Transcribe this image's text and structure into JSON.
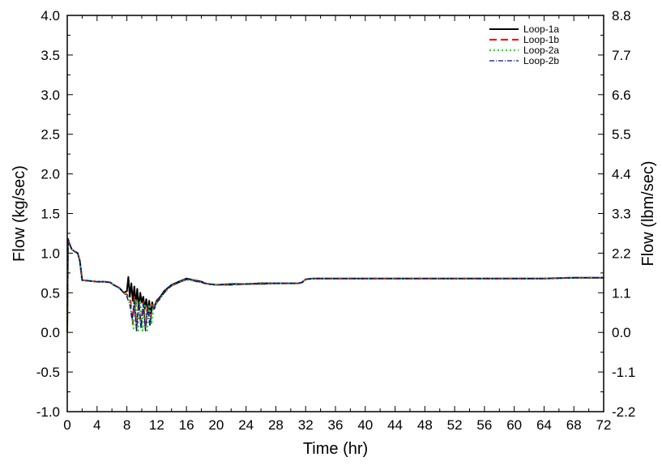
{
  "chart_data": {
    "type": "line",
    "xlabel": "Time (hr)",
    "ylabel": "Flow (kg/sec)",
    "y2label": "Flow (lbm/sec)",
    "xlim": [
      0,
      72
    ],
    "ylim": [
      -1.0,
      4.0
    ],
    "y2lim": [
      -2.2,
      8.8
    ],
    "grid": false,
    "legend_position": "top-right",
    "x_ticks": [
      "0",
      "4",
      "8",
      "12",
      "16",
      "20",
      "24",
      "28",
      "32",
      "36",
      "40",
      "44",
      "48",
      "52",
      "56",
      "60",
      "64",
      "68",
      "72"
    ],
    "y_ticks": [
      "-1.0",
      "-0.5",
      "0.0",
      "0.5",
      "1.0",
      "1.5",
      "2.0",
      "2.5",
      "3.0",
      "3.5",
      "4.0"
    ],
    "y2_ticks": [
      "-2.2",
      "-1.1",
      "0.0",
      "1.1",
      "2.2",
      "3.3",
      "4.4",
      "5.5",
      "6.6",
      "7.7",
      "8.8"
    ],
    "series": [
      {
        "name": "Loop-1a",
        "color": "#000000",
        "dash": "solid",
        "x": [
          0,
          0.1,
          0.3,
          0.6,
          1.0,
          1.4,
          1.7,
          2.0,
          3,
          4,
          5,
          5.8,
          6.2,
          7.0,
          7.6,
          8.0,
          8.2,
          8.4,
          8.6,
          8.8,
          9.0,
          9.2,
          9.4,
          9.6,
          9.8,
          10.0,
          10.2,
          10.4,
          10.6,
          10.8,
          11.0,
          11.2,
          11.4,
          11.6,
          12.0,
          12.5,
          13.0,
          13.5,
          14.0,
          14.5,
          15.0,
          15.5,
          16.0,
          16.5,
          17.0,
          17.5,
          18.0,
          18.5,
          19.0,
          20,
          22,
          24,
          26,
          28,
          30,
          31,
          31.5,
          32,
          33,
          34,
          36,
          40,
          44,
          48,
          52,
          56,
          60,
          64,
          68,
          72
        ],
        "y": [
          0.0,
          1.18,
          1.12,
          1.05,
          1.02,
          1.0,
          0.9,
          0.66,
          0.65,
          0.64,
          0.64,
          0.63,
          0.6,
          0.56,
          0.5,
          0.52,
          0.7,
          0.45,
          0.62,
          0.4,
          0.58,
          0.35,
          0.55,
          0.3,
          0.5,
          0.38,
          0.45,
          0.3,
          0.42,
          0.25,
          0.4,
          0.2,
          0.38,
          0.3,
          0.4,
          0.45,
          0.52,
          0.56,
          0.6,
          0.62,
          0.64,
          0.66,
          0.68,
          0.67,
          0.66,
          0.65,
          0.64,
          0.62,
          0.61,
          0.6,
          0.61,
          0.61,
          0.62,
          0.62,
          0.62,
          0.62,
          0.63,
          0.67,
          0.68,
          0.68,
          0.68,
          0.68,
          0.68,
          0.68,
          0.68,
          0.68,
          0.68,
          0.68,
          0.69,
          0.69
        ]
      },
      {
        "name": "Loop-1b",
        "color": "#ff0000",
        "dash": "dashed",
        "x": [
          0,
          0.1,
          0.3,
          0.6,
          1.0,
          1.4,
          1.7,
          2.0,
          3,
          4,
          5,
          5.8,
          6.2,
          7.0,
          7.6,
          8.0,
          8.5,
          8.8,
          9.0,
          9.3,
          9.6,
          9.9,
          10.2,
          10.5,
          10.8,
          11.1,
          11.4,
          11.7,
          12.0,
          12.5,
          13.0,
          13.5,
          14.0,
          14.5,
          15.0,
          15.5,
          16.0,
          16.5,
          17.0,
          17.5,
          18.0,
          18.5,
          19.0,
          20,
          22,
          24,
          26,
          28,
          30,
          31,
          31.5,
          32,
          33,
          34,
          36,
          40,
          44,
          48,
          52,
          56,
          60,
          64,
          68,
          72
        ],
        "y": [
          0.0,
          1.17,
          1.12,
          1.05,
          1.02,
          1.0,
          0.9,
          0.66,
          0.65,
          0.64,
          0.64,
          0.63,
          0.6,
          0.56,
          0.5,
          0.48,
          0.4,
          0.1,
          0.45,
          0.05,
          0.4,
          0.08,
          0.38,
          0.05,
          0.35,
          0.1,
          0.35,
          0.3,
          0.38,
          0.44,
          0.5,
          0.55,
          0.59,
          0.61,
          0.63,
          0.65,
          0.67,
          0.66,
          0.66,
          0.64,
          0.63,
          0.62,
          0.61,
          0.6,
          0.6,
          0.61,
          0.61,
          0.62,
          0.62,
          0.62,
          0.63,
          0.67,
          0.68,
          0.68,
          0.68,
          0.68,
          0.68,
          0.68,
          0.68,
          0.68,
          0.68,
          0.68,
          0.69,
          0.69
        ]
      },
      {
        "name": "Loop-2a",
        "color": "#00ee00",
        "dash": "dotted",
        "x": [
          0,
          0.1,
          0.3,
          0.6,
          1.0,
          1.4,
          1.7,
          2.0,
          3,
          4,
          5,
          5.8,
          6.2,
          7.0,
          7.6,
          8.0,
          8.5,
          8.9,
          9.2,
          9.5,
          9.8,
          10.1,
          10.4,
          10.7,
          11.0,
          11.3,
          11.6,
          12.0,
          12.5,
          13.0,
          13.5,
          14.0,
          14.5,
          15.0,
          15.5,
          16.0,
          16.5,
          17.0,
          17.5,
          18.0,
          18.5,
          19.0,
          20,
          22,
          24,
          26,
          28,
          30,
          31,
          31.5,
          32,
          33,
          34,
          36,
          40,
          44,
          48,
          52,
          56,
          60,
          64,
          68,
          72
        ],
        "y": [
          0.0,
          1.16,
          1.11,
          1.05,
          1.02,
          1.0,
          0.9,
          0.66,
          0.65,
          0.64,
          0.64,
          0.63,
          0.6,
          0.56,
          0.5,
          0.47,
          0.38,
          0.05,
          0.42,
          0.0,
          0.4,
          0.02,
          0.36,
          0.0,
          0.35,
          0.1,
          0.33,
          0.37,
          0.43,
          0.5,
          0.55,
          0.59,
          0.61,
          0.63,
          0.65,
          0.67,
          0.66,
          0.65,
          0.64,
          0.63,
          0.62,
          0.61,
          0.6,
          0.6,
          0.61,
          0.61,
          0.62,
          0.62,
          0.62,
          0.63,
          0.67,
          0.68,
          0.68,
          0.68,
          0.68,
          0.68,
          0.68,
          0.68,
          0.68,
          0.68,
          0.68,
          0.69,
          0.69
        ]
      },
      {
        "name": "Loop-2b",
        "color": "#0000cc",
        "dash": "dashdot",
        "x": [
          0,
          0.1,
          0.3,
          0.6,
          1.0,
          1.4,
          1.7,
          2.0,
          3,
          4,
          5,
          5.8,
          6.2,
          7.0,
          7.6,
          8.0,
          8.4,
          8.7,
          9.0,
          9.3,
          9.6,
          9.9,
          10.2,
          10.5,
          10.8,
          11.1,
          11.4,
          11.7,
          12.0,
          12.5,
          13.0,
          13.5,
          14.0,
          14.5,
          15.0,
          15.5,
          16.0,
          16.5,
          17.0,
          17.5,
          18.0,
          18.5,
          19.0,
          20,
          22,
          24,
          26,
          28,
          30,
          31,
          31.5,
          32,
          33,
          34,
          36,
          40,
          44,
          48,
          52,
          56,
          60,
          64,
          68,
          72
        ],
        "y": [
          0.0,
          1.17,
          1.12,
          1.05,
          1.02,
          1.0,
          0.9,
          0.66,
          0.65,
          0.64,
          0.64,
          0.63,
          0.6,
          0.56,
          0.5,
          0.45,
          0.35,
          0.15,
          0.4,
          0.02,
          0.38,
          0.05,
          0.36,
          0.02,
          0.34,
          0.08,
          0.33,
          0.3,
          0.37,
          0.43,
          0.5,
          0.55,
          0.59,
          0.61,
          0.63,
          0.65,
          0.67,
          0.66,
          0.65,
          0.64,
          0.63,
          0.62,
          0.61,
          0.6,
          0.6,
          0.61,
          0.61,
          0.62,
          0.62,
          0.62,
          0.63,
          0.67,
          0.68,
          0.68,
          0.68,
          0.68,
          0.68,
          0.68,
          0.68,
          0.68,
          0.68,
          0.68,
          0.69,
          0.69
        ]
      }
    ]
  }
}
